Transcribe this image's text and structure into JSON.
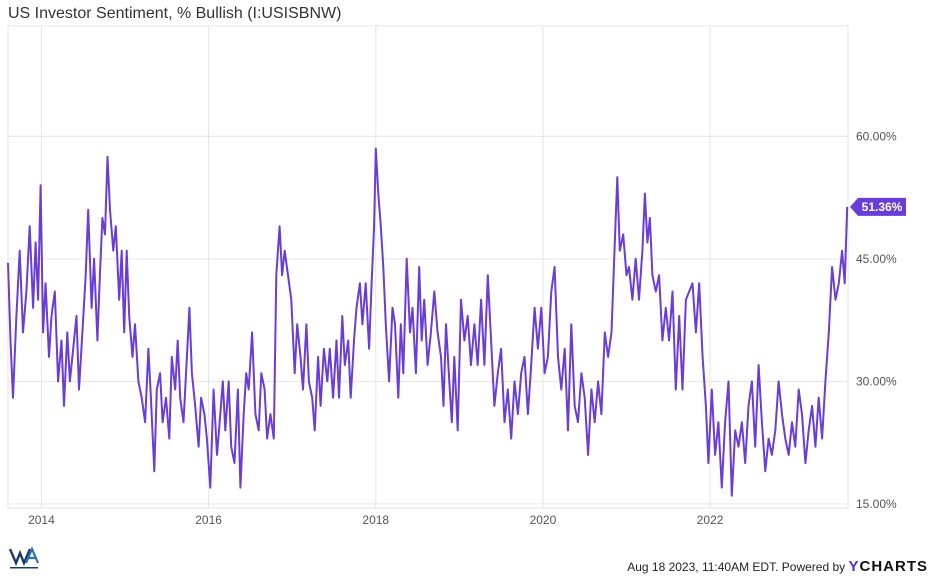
{
  "header": {
    "title": "US Investor Sentiment, % Bullish (I:USISBNW)"
  },
  "footer": {
    "timestamp": "Aug 18 2023, 11:40AM EDT. Powered by",
    "brand_y": "Y",
    "brand_rest": "CHARTS"
  },
  "colors": {
    "line": "#6a3dd8",
    "grid": "#e6e6e6",
    "label": "#555555",
    "badge": "#6a3dd8"
  },
  "chart_data": {
    "type": "line",
    "title": "US Investor Sentiment, % Bullish (I:USISBNW)",
    "xlabel": "",
    "ylabel": "",
    "xlim": [
      2013.6,
      2023.65
    ],
    "ylim": [
      14.5,
      73.5
    ],
    "x_ticks": [
      {
        "value": 2014,
        "label": "2014"
      },
      {
        "value": 2016,
        "label": "2016"
      },
      {
        "value": 2018,
        "label": "2018"
      },
      {
        "value": 2020,
        "label": "2020"
      },
      {
        "value": 2022,
        "label": "2022"
      }
    ],
    "y_ticks": [
      {
        "value": 15,
        "label": "15.00%"
      },
      {
        "value": 30,
        "label": "30.00%"
      },
      {
        "value": 45,
        "label": "45.00%"
      },
      {
        "value": 60,
        "label": "60.00%"
      }
    ],
    "grid": true,
    "last_value_label": "51.36%",
    "series": [
      {
        "values": [
          [
            2013.6,
            44.5
          ],
          [
            2013.63,
            35
          ],
          [
            2013.66,
            28
          ],
          [
            2013.7,
            38
          ],
          [
            2013.74,
            46
          ],
          [
            2013.78,
            36
          ],
          [
            2013.82,
            41
          ],
          [
            2013.86,
            49
          ],
          [
            2013.9,
            39
          ],
          [
            2013.93,
            47
          ],
          [
            2013.96,
            40
          ],
          [
            2013.99,
            54
          ],
          [
            2014.02,
            36
          ],
          [
            2014.05,
            42
          ],
          [
            2014.09,
            33
          ],
          [
            2014.12,
            38
          ],
          [
            2014.16,
            41
          ],
          [
            2014.2,
            30
          ],
          [
            2014.24,
            35
          ],
          [
            2014.27,
            27
          ],
          [
            2014.31,
            36
          ],
          [
            2014.34,
            30
          ],
          [
            2014.38,
            34
          ],
          [
            2014.42,
            38
          ],
          [
            2014.45,
            29
          ],
          [
            2014.49,
            36
          ],
          [
            2014.53,
            43
          ],
          [
            2014.56,
            51
          ],
          [
            2014.6,
            39
          ],
          [
            2014.63,
            45
          ],
          [
            2014.67,
            35
          ],
          [
            2014.7,
            43
          ],
          [
            2014.73,
            50
          ],
          [
            2014.76,
            48
          ],
          [
            2014.79,
            57.5
          ],
          [
            2014.82,
            51
          ],
          [
            2014.86,
            46
          ],
          [
            2014.89,
            49
          ],
          [
            2014.93,
            40
          ],
          [
            2014.96,
            46
          ],
          [
            2014.99,
            36
          ],
          [
            2015.02,
            46
          ],
          [
            2015.05,
            38
          ],
          [
            2015.09,
            33
          ],
          [
            2015.12,
            37
          ],
          [
            2015.16,
            30
          ],
          [
            2015.2,
            28
          ],
          [
            2015.24,
            25
          ],
          [
            2015.28,
            34
          ],
          [
            2015.31,
            28
          ],
          [
            2015.35,
            19
          ],
          [
            2015.38,
            29
          ],
          [
            2015.42,
            31
          ],
          [
            2015.45,
            25
          ],
          [
            2015.49,
            28
          ],
          [
            2015.53,
            23
          ],
          [
            2015.56,
            33
          ],
          [
            2015.6,
            29
          ],
          [
            2015.63,
            35
          ],
          [
            2015.66,
            28
          ],
          [
            2015.7,
            25
          ],
          [
            2015.74,
            33
          ],
          [
            2015.77,
            39
          ],
          [
            2015.8,
            31
          ],
          [
            2015.84,
            27
          ],
          [
            2015.88,
            22
          ],
          [
            2015.91,
            28
          ],
          [
            2015.95,
            26
          ],
          [
            2015.98,
            23
          ],
          [
            2016.02,
            17
          ],
          [
            2016.06,
            29
          ],
          [
            2016.1,
            21
          ],
          [
            2016.14,
            26
          ],
          [
            2016.17,
            30
          ],
          [
            2016.2,
            24
          ],
          [
            2016.24,
            30
          ],
          [
            2016.27,
            22
          ],
          [
            2016.31,
            20
          ],
          [
            2016.35,
            29
          ],
          [
            2016.38,
            17
          ],
          [
            2016.42,
            26
          ],
          [
            2016.45,
            31
          ],
          [
            2016.48,
            29
          ],
          [
            2016.52,
            36
          ],
          [
            2016.56,
            26
          ],
          [
            2016.6,
            24
          ],
          [
            2016.63,
            31
          ],
          [
            2016.67,
            29
          ],
          [
            2016.7,
            23
          ],
          [
            2016.74,
            26
          ],
          [
            2016.78,
            23
          ],
          [
            2016.81,
            43
          ],
          [
            2016.85,
            49
          ],
          [
            2016.88,
            43
          ],
          [
            2016.91,
            46
          ],
          [
            2016.95,
            43
          ],
          [
            2016.99,
            40
          ],
          [
            2017.03,
            31
          ],
          [
            2017.06,
            37
          ],
          [
            2017.1,
            33
          ],
          [
            2017.13,
            29
          ],
          [
            2017.17,
            37
          ],
          [
            2017.2,
            30
          ],
          [
            2017.24,
            28
          ],
          [
            2017.27,
            24
          ],
          [
            2017.31,
            33
          ],
          [
            2017.34,
            27
          ],
          [
            2017.38,
            34
          ],
          [
            2017.42,
            30
          ],
          [
            2017.45,
            34
          ],
          [
            2017.49,
            28
          ],
          [
            2017.53,
            35
          ],
          [
            2017.56,
            28
          ],
          [
            2017.6,
            38
          ],
          [
            2017.63,
            32
          ],
          [
            2017.67,
            35
          ],
          [
            2017.7,
            28
          ],
          [
            2017.74,
            35
          ],
          [
            2017.77,
            39
          ],
          [
            2017.81,
            42
          ],
          [
            2017.84,
            37
          ],
          [
            2017.88,
            42
          ],
          [
            2017.92,
            34
          ],
          [
            2017.95,
            42
          ],
          [
            2017.98,
            49
          ],
          [
            2018.0,
            58.5
          ],
          [
            2018.03,
            53
          ],
          [
            2018.06,
            49
          ],
          [
            2018.09,
            44
          ],
          [
            2018.12,
            37
          ],
          [
            2018.16,
            30
          ],
          [
            2018.2,
            39
          ],
          [
            2018.23,
            37
          ],
          [
            2018.27,
            28
          ],
          [
            2018.3,
            37
          ],
          [
            2018.33,
            31
          ],
          [
            2018.37,
            45
          ],
          [
            2018.41,
            36
          ],
          [
            2018.44,
            39
          ],
          [
            2018.48,
            31
          ],
          [
            2018.52,
            44
          ],
          [
            2018.55,
            35
          ],
          [
            2018.58,
            40
          ],
          [
            2018.62,
            32
          ],
          [
            2018.66,
            36
          ],
          [
            2018.7,
            41
          ],
          [
            2018.74,
            36
          ],
          [
            2018.78,
            33
          ],
          [
            2018.81,
            27
          ],
          [
            2018.84,
            37
          ],
          [
            2018.88,
            30
          ],
          [
            2018.91,
            25
          ],
          [
            2018.94,
            33
          ],
          [
            2018.98,
            24
          ],
          [
            2019.02,
            40
          ],
          [
            2019.06,
            35
          ],
          [
            2019.1,
            38
          ],
          [
            2019.14,
            32
          ],
          [
            2019.18,
            37
          ],
          [
            2019.22,
            32
          ],
          [
            2019.26,
            40
          ],
          [
            2019.3,
            32
          ],
          [
            2019.34,
            43
          ],
          [
            2019.38,
            35
          ],
          [
            2019.42,
            27
          ],
          [
            2019.46,
            31
          ],
          [
            2019.5,
            34
          ],
          [
            2019.54,
            25
          ],
          [
            2019.58,
            29
          ],
          [
            2019.62,
            23
          ],
          [
            2019.66,
            30
          ],
          [
            2019.7,
            26
          ],
          [
            2019.74,
            31
          ],
          [
            2019.78,
            33
          ],
          [
            2019.82,
            26
          ],
          [
            2019.86,
            32
          ],
          [
            2019.9,
            39
          ],
          [
            2019.94,
            34
          ],
          [
            2019.98,
            39
          ],
          [
            2020.02,
            31
          ],
          [
            2020.06,
            33
          ],
          [
            2020.1,
            41
          ],
          [
            2020.14,
            44
          ],
          [
            2020.18,
            33
          ],
          [
            2020.22,
            29
          ],
          [
            2020.26,
            34
          ],
          [
            2020.3,
            24
          ],
          [
            2020.34,
            37
          ],
          [
            2020.38,
            27
          ],
          [
            2020.42,
            25
          ],
          [
            2020.46,
            31
          ],
          [
            2020.5,
            28
          ],
          [
            2020.54,
            21
          ],
          [
            2020.58,
            29
          ],
          [
            2020.62,
            25
          ],
          [
            2020.66,
            30
          ],
          [
            2020.7,
            26
          ],
          [
            2020.74,
            36
          ],
          [
            2020.78,
            33
          ],
          [
            2020.82,
            36
          ],
          [
            2020.86,
            47
          ],
          [
            2020.89,
            55
          ],
          [
            2020.92,
            46
          ],
          [
            2020.96,
            48
          ],
          [
            2021.0,
            43
          ],
          [
            2021.03,
            44
          ],
          [
            2021.07,
            40
          ],
          [
            2021.11,
            45
          ],
          [
            2021.15,
            40
          ],
          [
            2021.19,
            46
          ],
          [
            2021.22,
            53
          ],
          [
            2021.25,
            47
          ],
          [
            2021.28,
            50
          ],
          [
            2021.31,
            43
          ],
          [
            2021.35,
            41
          ],
          [
            2021.39,
            43
          ],
          [
            2021.43,
            35
          ],
          [
            2021.47,
            39
          ],
          [
            2021.51,
            35
          ],
          [
            2021.55,
            41
          ],
          [
            2021.59,
            29
          ],
          [
            2021.63,
            38
          ],
          [
            2021.67,
            29
          ],
          [
            2021.71,
            40
          ],
          [
            2021.75,
            41
          ],
          [
            2021.79,
            42
          ],
          [
            2021.83,
            36
          ],
          [
            2021.87,
            42
          ],
          [
            2021.91,
            33
          ],
          [
            2021.95,
            27
          ],
          [
            2021.98,
            20
          ],
          [
            2022.02,
            29
          ],
          [
            2022.06,
            21
          ],
          [
            2022.1,
            25
          ],
          [
            2022.14,
            17
          ],
          [
            2022.18,
            25
          ],
          [
            2022.22,
            30
          ],
          [
            2022.26,
            16
          ],
          [
            2022.3,
            24
          ],
          [
            2022.34,
            22
          ],
          [
            2022.38,
            25
          ],
          [
            2022.42,
            20
          ],
          [
            2022.46,
            27
          ],
          [
            2022.5,
            30
          ],
          [
            2022.54,
            22
          ],
          [
            2022.58,
            32
          ],
          [
            2022.62,
            25
          ],
          [
            2022.66,
            19
          ],
          [
            2022.7,
            23
          ],
          [
            2022.74,
            21
          ],
          [
            2022.78,
            24
          ],
          [
            2022.82,
            30
          ],
          [
            2022.86,
            26
          ],
          [
            2022.9,
            23
          ],
          [
            2022.94,
            21
          ],
          [
            2022.98,
            25
          ],
          [
            2023.02,
            22
          ],
          [
            2023.06,
            29
          ],
          [
            2023.1,
            26
          ],
          [
            2023.14,
            20
          ],
          [
            2023.18,
            24
          ],
          [
            2023.22,
            27
          ],
          [
            2023.26,
            22
          ],
          [
            2023.3,
            28
          ],
          [
            2023.34,
            23
          ],
          [
            2023.38,
            30
          ],
          [
            2023.42,
            36
          ],
          [
            2023.46,
            44
          ],
          [
            2023.5,
            40
          ],
          [
            2023.54,
            42
          ],
          [
            2023.58,
            46
          ],
          [
            2023.61,
            42
          ],
          [
            2023.64,
            51.36
          ]
        ]
      }
    ]
  }
}
